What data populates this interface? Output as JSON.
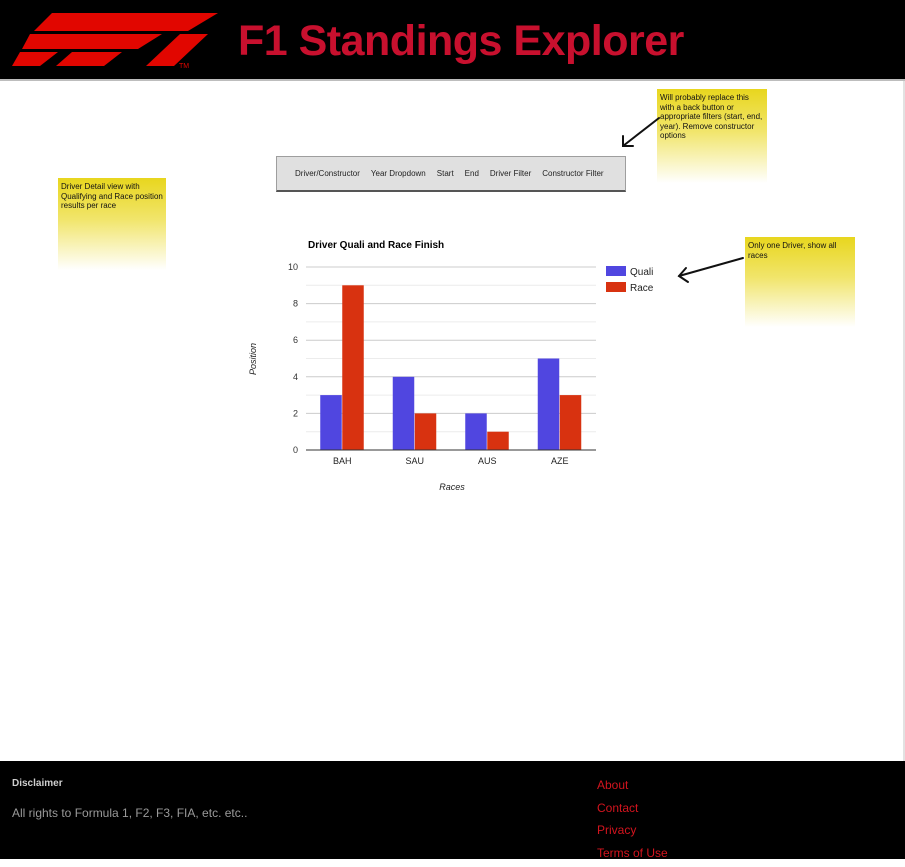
{
  "header": {
    "title": "F1 Standings Explorer",
    "logo_icon": "f1-logo-icon",
    "logo_mark": "TM",
    "brand_color": "#c8102e"
  },
  "notes": {
    "left": "Driver Detail view with Qualifying and Race position results per race",
    "top": "Will probably replace this with a back button or appropriate filters (start, end, year). Remove constructor options",
    "right": "Only one Driver, show all races"
  },
  "filters": [
    "Driver/Constructor",
    "Year Dropdown",
    "Start",
    "End",
    "Driver Filter",
    "Constructor Filter"
  ],
  "chart_data": {
    "type": "bar",
    "title": "Driver Quali and Race Finish",
    "xlabel": "Races",
    "ylabel": "Position",
    "categories": [
      "BAH",
      "SAU",
      "AUS",
      "AZE"
    ],
    "series": [
      {
        "name": "Quali",
        "values": [
          3,
          4,
          2,
          5
        ],
        "color": "#5046e0"
      },
      {
        "name": "Race",
        "values": [
          9,
          2,
          1,
          3
        ],
        "color": "#d83210"
      }
    ],
    "ylim": [
      0,
      10
    ],
    "yticks": [
      0,
      2,
      4,
      6,
      8,
      10
    ],
    "grid": true,
    "legend": "right"
  },
  "footer": {
    "disclaimer_heading": "Disclaimer",
    "disclaimer_text": "All rights to Formula 1, F2, F3, FIA, etc. etc..",
    "links": [
      "About",
      "Contact",
      "Privacy",
      "Terms of Use"
    ],
    "link_color": "#d3141e"
  }
}
